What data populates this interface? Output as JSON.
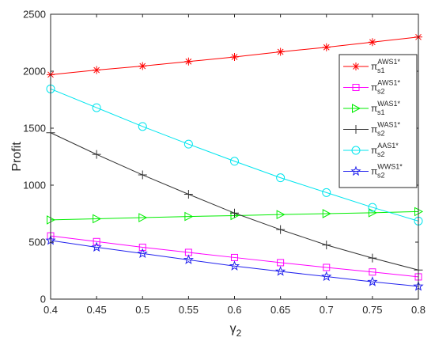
{
  "chart_data": {
    "type": "line",
    "xlabel": "γ₂",
    "xlabel_base": "γ",
    "xlabel_sub": "2",
    "ylabel": "Profit",
    "xlim": [
      0.4,
      0.8
    ],
    "ylim": [
      0,
      2500
    ],
    "xticks": [
      "0.4",
      "0.45",
      "0.5",
      "0.55",
      "0.6",
      "0.65",
      "0.7",
      "0.75",
      "0.8"
    ],
    "yticks": [
      "0",
      "500",
      "1000",
      "1500",
      "2000",
      "2500"
    ],
    "x": [
      0.4,
      0.45,
      0.5,
      0.55,
      0.6,
      0.65,
      0.7,
      0.75,
      0.8
    ],
    "grid": false,
    "legend_position": "top-right",
    "series": [
      {
        "name": "πs1AWS1*",
        "greek": "π",
        "sup": "AWS1*",
        "sub": "s1",
        "color": "#ff0000",
        "marker": "asterisk",
        "values": [
          1970,
          2010,
          2045,
          2085,
          2125,
          2170,
          2210,
          2255,
          2300
        ]
      },
      {
        "name": "πs2AWS1*",
        "greek": "π",
        "sup": "AWS1*",
        "sub": "s2",
        "color": "#ff00ff",
        "marker": "square",
        "values": [
          555,
          505,
          455,
          410,
          365,
          320,
          278,
          238,
          195
        ]
      },
      {
        "name": "πs1WAS1*",
        "greek": "π",
        "sup": "WAS1*",
        "sub": "s1",
        "color": "#00ee00",
        "marker": "triangle-right",
        "values": [
          695,
          705,
          715,
          725,
          733,
          742,
          750,
          758,
          768
        ]
      },
      {
        "name": "πs2WAS1*",
        "greek": "π",
        "sup": "WAS1*",
        "sub": "s2",
        "color": "#333333",
        "marker": "plus",
        "values": [
          1460,
          1270,
          1090,
          920,
          755,
          610,
          475,
          360,
          255
        ]
      },
      {
        "name": "πs2AAS1*",
        "greek": "π",
        "sup": "AAS1*",
        "sub": "s2",
        "color": "#00e5ee",
        "marker": "circle",
        "values": [
          1845,
          1680,
          1515,
          1360,
          1210,
          1065,
          935,
          805,
          685
        ]
      },
      {
        "name": "πs2WWS1*",
        "greek": "π",
        "sup": "WWS1*",
        "sub": "s2",
        "color": "#2222ee",
        "marker": "star",
        "values": [
          515,
          455,
          400,
          345,
          290,
          243,
          198,
          152,
          112
        ]
      }
    ]
  }
}
